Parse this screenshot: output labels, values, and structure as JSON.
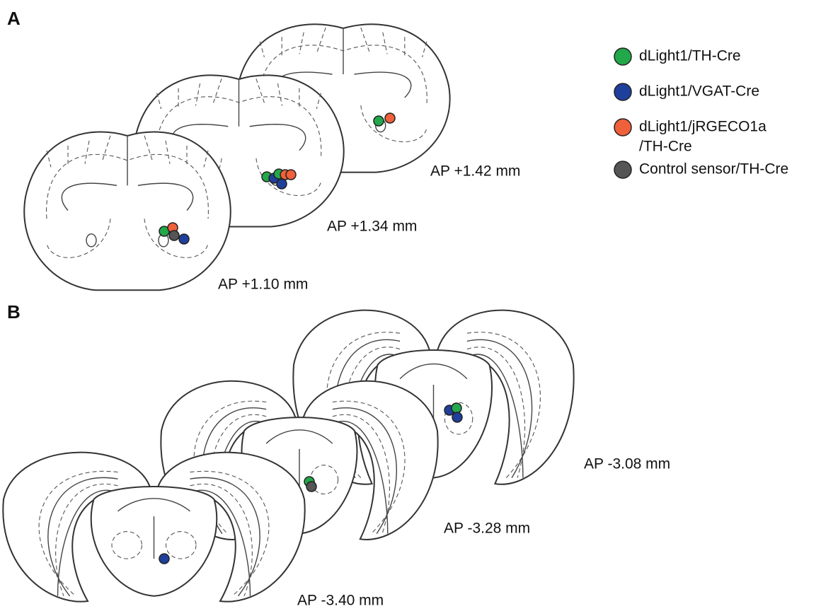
{
  "panels": [
    {
      "label": "A",
      "sections": [
        "AP +1.42 mm",
        "AP +1.34 mm",
        "AP +1.10 mm"
      ]
    },
    {
      "label": "B",
      "sections": [
        "AP -3.08 mm",
        "AP -3.28 mm",
        "AP -3.40 mm"
      ]
    }
  ],
  "legend": [
    {
      "lines": [
        "dLight1/TH-Cre"
      ],
      "color": "#22a84a"
    },
    {
      "lines": [
        "dLight1/VGAT-Cre"
      ],
      "color": "#1f3f9c"
    },
    {
      "lines": [
        "dLight1/jRGECO1a",
        "/TH-Cre"
      ],
      "color": "#f0603a"
    },
    {
      "lines": [
        "Control sensor/TH-Cre"
      ],
      "color": "#555555"
    }
  ]
}
